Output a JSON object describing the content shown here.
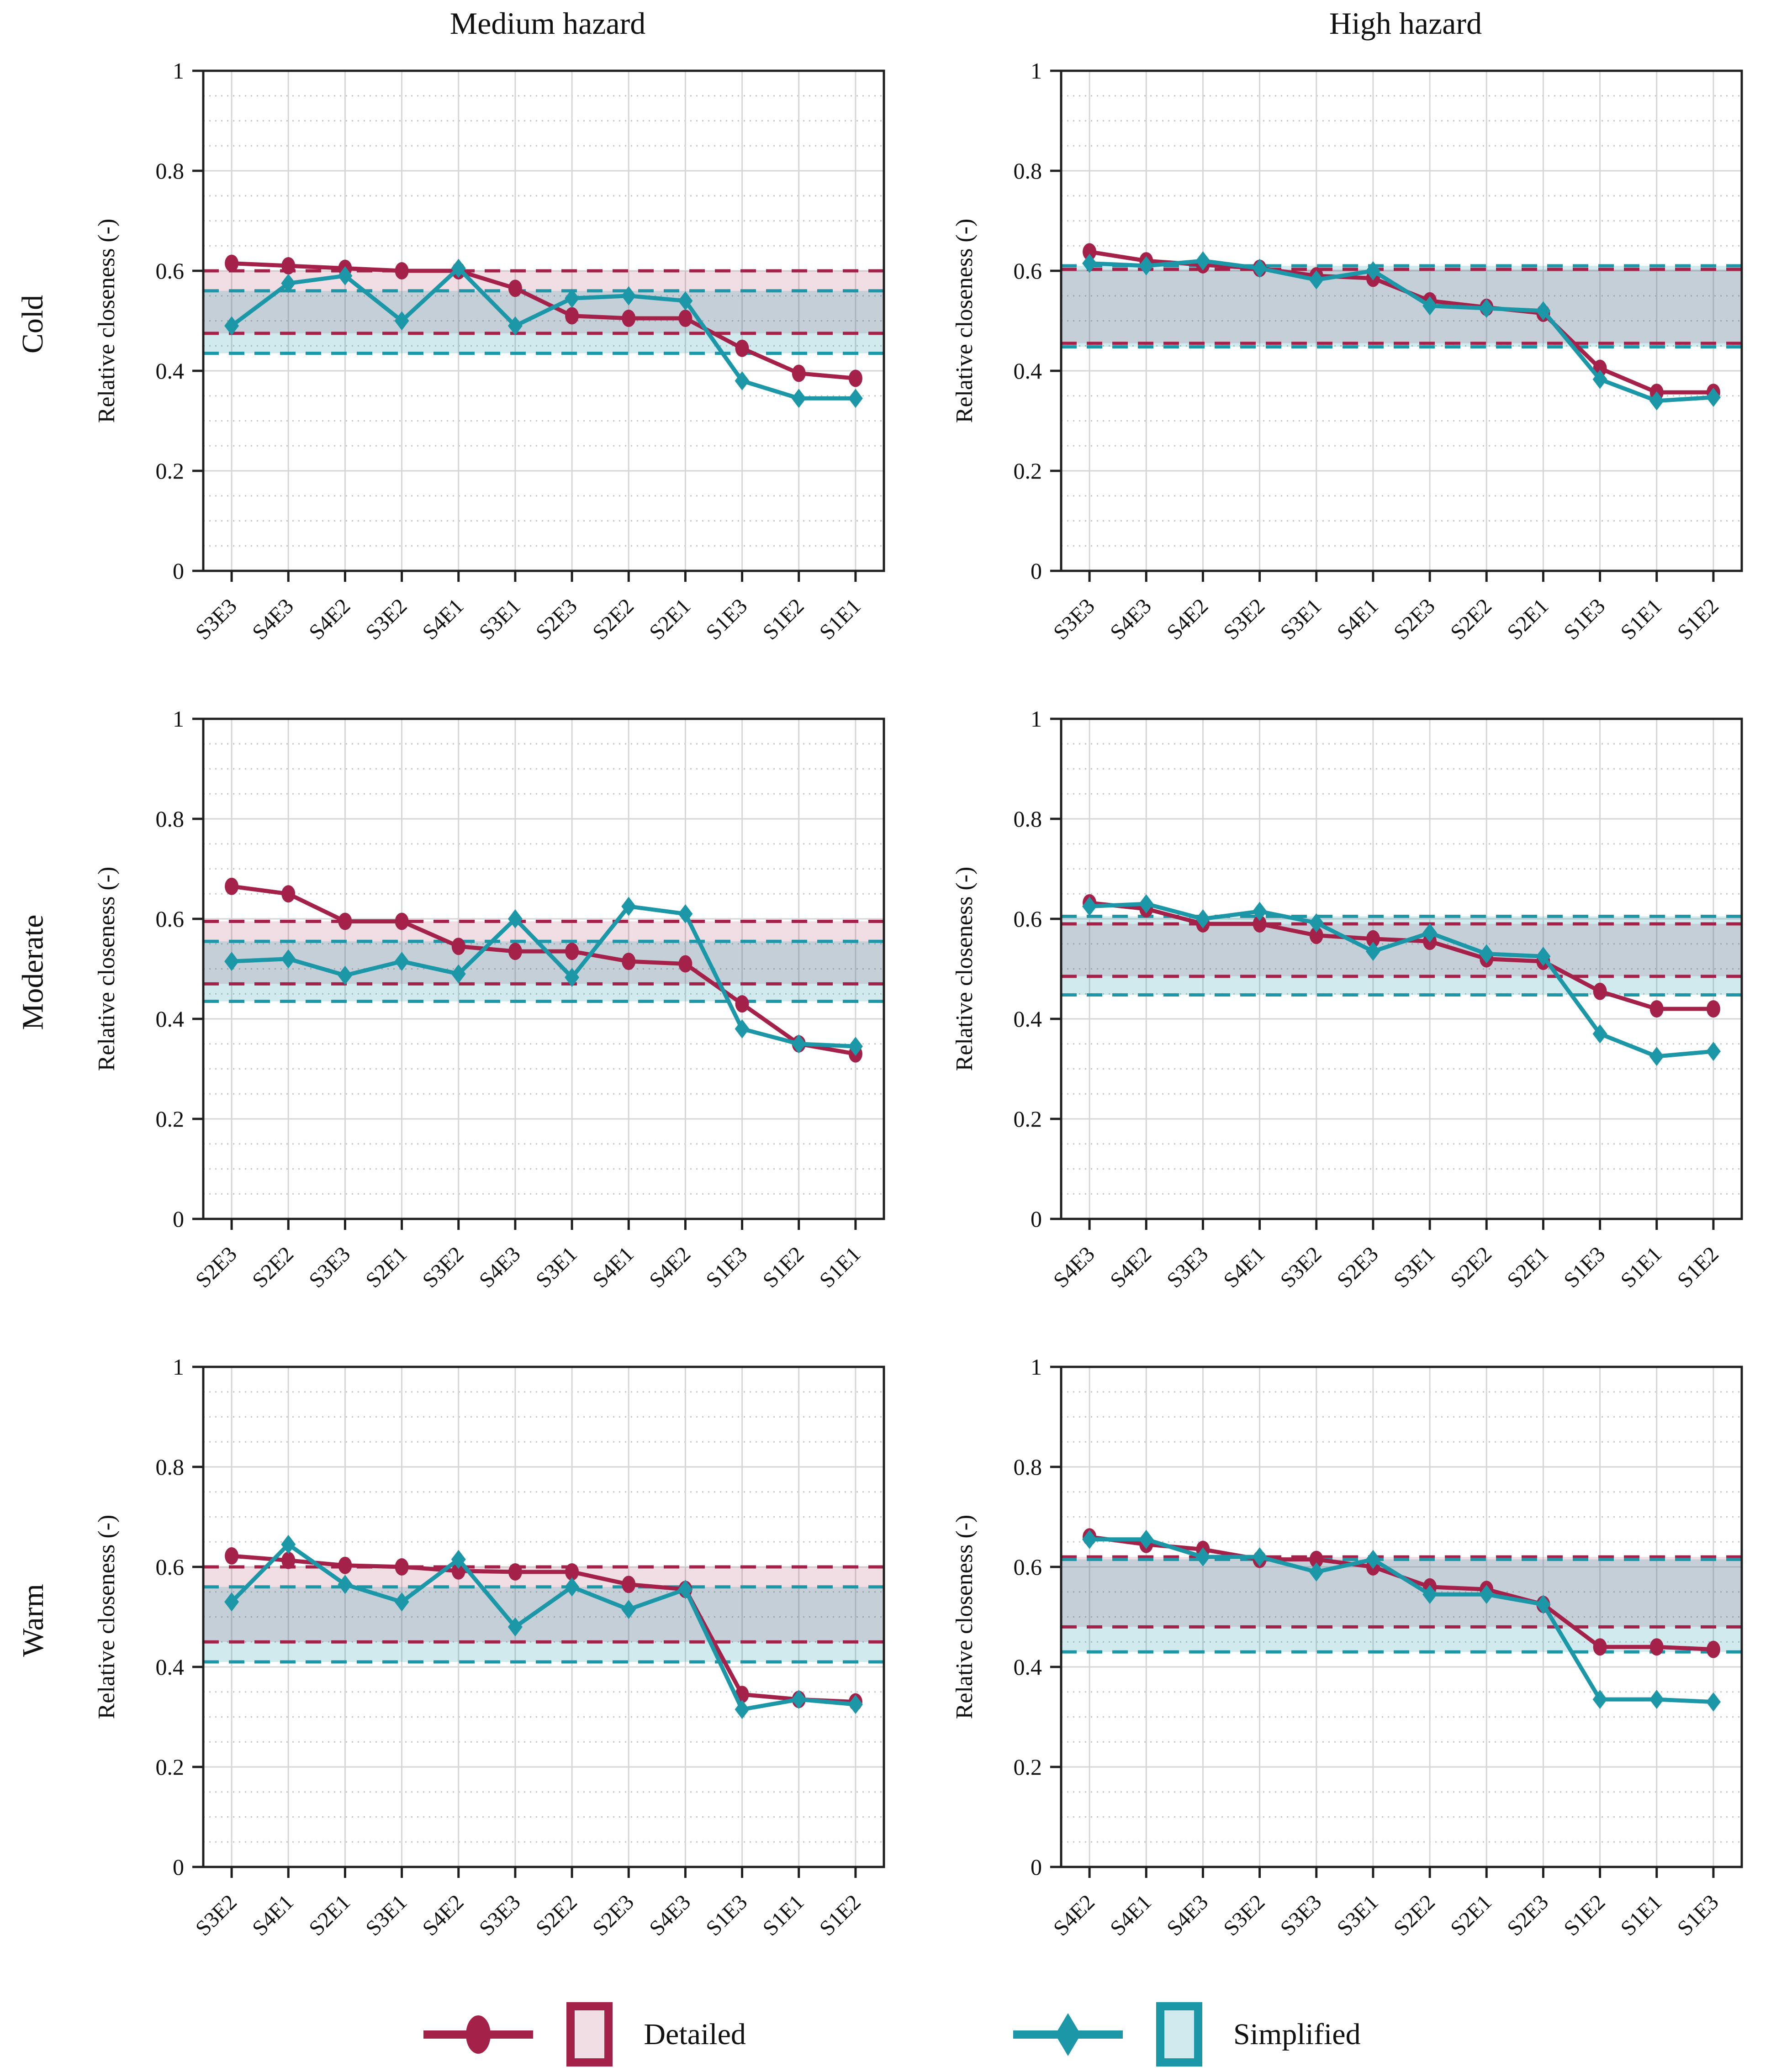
{
  "titles": [
    "Medium hazard",
    "High hazard"
  ],
  "rows": [
    "Cold",
    "Moderate",
    "Warm"
  ],
  "ylabel": "Relative closeness (-)",
  "legend": {
    "detailed_label": "Detailed",
    "simplified_label": "Simplified"
  },
  "colors": {
    "detailed": "#A42149",
    "simplified": "#1B97A8",
    "detailed_fill": "rgba(164,33,73,0.15)",
    "simplified_fill": "rgba(27,151,168,0.20)",
    "grid_major": "#d6d6d6",
    "grid_minor": "#c4c4c4",
    "axis": "#1f1f1f"
  },
  "chart_data": [
    {
      "type": "line",
      "row": "Cold",
      "column": "Medium hazard",
      "ylim": [
        0,
        1
      ],
      "yticks": [
        0,
        0.2,
        0.4,
        0.6,
        0.8,
        1
      ],
      "grid": "on",
      "categories": [
        "S3E3",
        "S4E3",
        "S4E2",
        "S3E2",
        "S4E1",
        "S3E1",
        "S2E3",
        "S2E2",
        "S2E1",
        "S1E3",
        "S1E2",
        "S1E1"
      ],
      "series": [
        {
          "name": "Detailed",
          "values": [
            0.615,
            0.61,
            0.605,
            0.6,
            0.6,
            0.565,
            0.51,
            0.505,
            0.505,
            0.445,
            0.395,
            0.385
          ],
          "band": [
            0.475,
            0.6
          ]
        },
        {
          "name": "Simplified",
          "values": [
            0.49,
            0.575,
            0.59,
            0.5,
            0.605,
            0.49,
            0.545,
            0.55,
            0.54,
            0.38,
            0.345,
            0.345
          ],
          "band": [
            0.435,
            0.56
          ]
        }
      ]
    },
    {
      "type": "line",
      "row": "Cold",
      "column": "High hazard",
      "ylim": [
        0,
        1
      ],
      "yticks": [
        0,
        0.2,
        0.4,
        0.6,
        0.8,
        1
      ],
      "grid": "on",
      "categories": [
        "S3E3",
        "S4E3",
        "S4E2",
        "S3E2",
        "S3E1",
        "S4E1",
        "S2E3",
        "S2E2",
        "S2E1",
        "S1E3",
        "S1E1",
        "S1E2"
      ],
      "series": [
        {
          "name": "Detailed",
          "values": [
            0.638,
            0.62,
            0.612,
            0.605,
            0.59,
            0.585,
            0.54,
            0.527,
            0.515,
            0.405,
            0.357,
            0.357
          ],
          "band": [
            0.455,
            0.603
          ]
        },
        {
          "name": "Simplified",
          "values": [
            0.615,
            0.61,
            0.62,
            0.605,
            0.582,
            0.6,
            0.53,
            0.525,
            0.52,
            0.383,
            0.34,
            0.347
          ],
          "band": [
            0.448,
            0.61
          ]
        }
      ]
    },
    {
      "type": "line",
      "row": "Moderate",
      "column": "Medium hazard",
      "ylim": [
        0,
        1
      ],
      "yticks": [
        0,
        0.2,
        0.4,
        0.6,
        0.8,
        1
      ],
      "grid": "on",
      "categories": [
        "S2E3",
        "S2E2",
        "S3E3",
        "S2E1",
        "S3E2",
        "S4E3",
        "S3E1",
        "S4E1",
        "S4E2",
        "S1E3",
        "S1E2",
        "S1E1"
      ],
      "series": [
        {
          "name": "Detailed",
          "values": [
            0.665,
            0.65,
            0.595,
            0.595,
            0.545,
            0.535,
            0.535,
            0.515,
            0.51,
            0.43,
            0.35,
            0.33
          ],
          "band": [
            0.47,
            0.595
          ]
        },
        {
          "name": "Simplified",
          "values": [
            0.515,
            0.52,
            0.487,
            0.515,
            0.49,
            0.6,
            0.483,
            0.625,
            0.61,
            0.38,
            0.35,
            0.345
          ],
          "band": [
            0.435,
            0.555
          ]
        }
      ]
    },
    {
      "type": "line",
      "row": "Moderate",
      "column": "High hazard",
      "ylim": [
        0,
        1
      ],
      "yticks": [
        0,
        0.2,
        0.4,
        0.6,
        0.8,
        1
      ],
      "grid": "on",
      "categories": [
        "S4E3",
        "S4E2",
        "S3E3",
        "S4E1",
        "S3E2",
        "S2E3",
        "S3E1",
        "S2E2",
        "S2E1",
        "S1E3",
        "S1E1",
        "S1E2"
      ],
      "series": [
        {
          "name": "Detailed",
          "values": [
            0.632,
            0.62,
            0.59,
            0.59,
            0.567,
            0.56,
            0.555,
            0.52,
            0.515,
            0.455,
            0.42,
            0.42
          ],
          "band": [
            0.485,
            0.59
          ]
        },
        {
          "name": "Simplified",
          "values": [
            0.625,
            0.63,
            0.6,
            0.615,
            0.592,
            0.535,
            0.572,
            0.53,
            0.525,
            0.37,
            0.325,
            0.335
          ],
          "band": [
            0.448,
            0.605
          ]
        }
      ]
    },
    {
      "type": "line",
      "row": "Warm",
      "column": "Medium hazard",
      "ylim": [
        0,
        1
      ],
      "yticks": [
        0,
        0.2,
        0.4,
        0.6,
        0.8,
        1
      ],
      "grid": "on",
      "categories": [
        "S3E2",
        "S4E1",
        "S2E1",
        "S3E1",
        "S4E2",
        "S3E3",
        "S2E2",
        "S2E3",
        "S4E3",
        "S1E3",
        "S1E1",
        "S1E2"
      ],
      "series": [
        {
          "name": "Detailed",
          "values": [
            0.622,
            0.613,
            0.603,
            0.6,
            0.592,
            0.59,
            0.59,
            0.565,
            0.555,
            0.345,
            0.335,
            0.33
          ],
          "band": [
            0.45,
            0.6
          ]
        },
        {
          "name": "Simplified",
          "values": [
            0.53,
            0.645,
            0.565,
            0.53,
            0.615,
            0.48,
            0.56,
            0.515,
            0.555,
            0.315,
            0.335,
            0.325
          ],
          "band": [
            0.41,
            0.56
          ]
        }
      ]
    },
    {
      "type": "line",
      "row": "Warm",
      "column": "High hazard",
      "ylim": [
        0,
        1
      ],
      "yticks": [
        0,
        0.2,
        0.4,
        0.6,
        0.8,
        1
      ],
      "grid": "on",
      "categories": [
        "S4E2",
        "S4E1",
        "S4E3",
        "S3E2",
        "S3E3",
        "S3E1",
        "S2E2",
        "S2E1",
        "S2E3",
        "S1E2",
        "S1E1",
        "S1E3"
      ],
      "series": [
        {
          "name": "Detailed",
          "values": [
            0.66,
            0.645,
            0.635,
            0.615,
            0.615,
            0.6,
            0.56,
            0.555,
            0.525,
            0.44,
            0.44,
            0.435
          ],
          "band": [
            0.48,
            0.62
          ]
        },
        {
          "name": "Simplified",
          "values": [
            0.655,
            0.655,
            0.62,
            0.62,
            0.59,
            0.615,
            0.545,
            0.545,
            0.525,
            0.335,
            0.335,
            0.33
          ],
          "band": [
            0.43,
            0.615
          ]
        }
      ]
    }
  ]
}
